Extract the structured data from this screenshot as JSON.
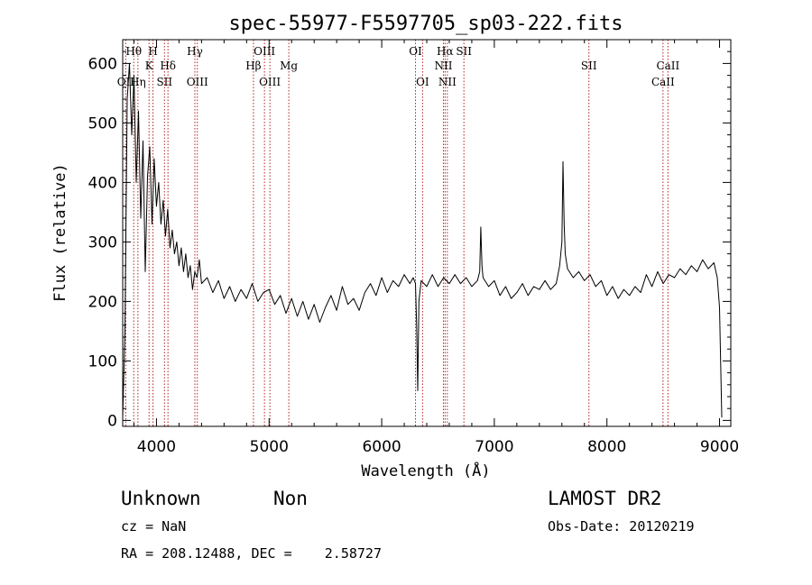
{
  "chart_data": {
    "type": "line",
    "title": "spec-55977-F5597705_sp03-222.fits",
    "xlabel": "Wavelength (Å)",
    "ylabel": "Flux (relative)",
    "xlim": [
      3700,
      9100
    ],
    "ylim": [
      -10,
      640
    ],
    "xticks": [
      4000,
      5000,
      6000,
      7000,
      8000,
      9000
    ],
    "yticks": [
      0,
      100,
      200,
      300,
      400,
      500,
      600
    ],
    "grid": false,
    "series": [
      {
        "color": "#000000",
        "points": [
          [
            3700,
            5
          ],
          [
            3720,
            150
          ],
          [
            3740,
            540
          ],
          [
            3760,
            600
          ],
          [
            3780,
            480
          ],
          [
            3800,
            580
          ],
          [
            3820,
            400
          ],
          [
            3840,
            520
          ],
          [
            3860,
            340
          ],
          [
            3880,
            470
          ],
          [
            3900,
            250
          ],
          [
            3920,
            410
          ],
          [
            3940,
            460
          ],
          [
            3960,
            330
          ],
          [
            3980,
            440
          ],
          [
            4000,
            360
          ],
          [
            4020,
            400
          ],
          [
            4040,
            330
          ],
          [
            4060,
            370
          ],
          [
            4080,
            310
          ],
          [
            4100,
            355
          ],
          [
            4120,
            290
          ],
          [
            4140,
            320
          ],
          [
            4160,
            280
          ],
          [
            4180,
            300
          ],
          [
            4200,
            260
          ],
          [
            4220,
            290
          ],
          [
            4240,
            250
          ],
          [
            4260,
            280
          ],
          [
            4280,
            240
          ],
          [
            4300,
            260
          ],
          [
            4320,
            220
          ],
          [
            4340,
            250
          ],
          [
            4360,
            240
          ],
          [
            4380,
            270
          ],
          [
            4400,
            230
          ],
          [
            4450,
            240
          ],
          [
            4500,
            215
          ],
          [
            4550,
            235
          ],
          [
            4600,
            205
          ],
          [
            4650,
            225
          ],
          [
            4700,
            200
          ],
          [
            4750,
            220
          ],
          [
            4800,
            205
          ],
          [
            4850,
            230
          ],
          [
            4900,
            200
          ],
          [
            4950,
            215
          ],
          [
            5000,
            220
          ],
          [
            5050,
            195
          ],
          [
            5100,
            210
          ],
          [
            5150,
            180
          ],
          [
            5200,
            205
          ],
          [
            5250,
            175
          ],
          [
            5300,
            200
          ],
          [
            5350,
            170
          ],
          [
            5400,
            195
          ],
          [
            5450,
            165
          ],
          [
            5500,
            190
          ],
          [
            5550,
            210
          ],
          [
            5600,
            185
          ],
          [
            5650,
            225
          ],
          [
            5700,
            195
          ],
          [
            5750,
            205
          ],
          [
            5800,
            185
          ],
          [
            5850,
            215
          ],
          [
            5900,
            230
          ],
          [
            5950,
            210
          ],
          [
            6000,
            240
          ],
          [
            6050,
            215
          ],
          [
            6100,
            235
          ],
          [
            6150,
            225
          ],
          [
            6200,
            245
          ],
          [
            6250,
            230
          ],
          [
            6280,
            240
          ],
          [
            6300,
            230
          ],
          [
            6310,
            160
          ],
          [
            6320,
            50
          ],
          [
            6330,
            200
          ],
          [
            6350,
            235
          ],
          [
            6400,
            225
          ],
          [
            6450,
            245
          ],
          [
            6500,
            225
          ],
          [
            6550,
            240
          ],
          [
            6600,
            230
          ],
          [
            6650,
            245
          ],
          [
            6700,
            230
          ],
          [
            6750,
            240
          ],
          [
            6800,
            225
          ],
          [
            6850,
            235
          ],
          [
            6870,
            250
          ],
          [
            6880,
            325
          ],
          [
            6890,
            260
          ],
          [
            6900,
            240
          ],
          [
            6950,
            225
          ],
          [
            7000,
            235
          ],
          [
            7050,
            210
          ],
          [
            7100,
            225
          ],
          [
            7150,
            205
          ],
          [
            7200,
            215
          ],
          [
            7250,
            230
          ],
          [
            7300,
            210
          ],
          [
            7350,
            225
          ],
          [
            7400,
            220
          ],
          [
            7450,
            235
          ],
          [
            7500,
            220
          ],
          [
            7550,
            230
          ],
          [
            7580,
            260
          ],
          [
            7600,
            300
          ],
          [
            7610,
            435
          ],
          [
            7620,
            330
          ],
          [
            7630,
            280
          ],
          [
            7650,
            255
          ],
          [
            7700,
            240
          ],
          [
            7750,
            250
          ],
          [
            7800,
            235
          ],
          [
            7850,
            245
          ],
          [
            7900,
            225
          ],
          [
            7950,
            235
          ],
          [
            8000,
            210
          ],
          [
            8050,
            225
          ],
          [
            8100,
            205
          ],
          [
            8150,
            220
          ],
          [
            8200,
            210
          ],
          [
            8250,
            225
          ],
          [
            8300,
            215
          ],
          [
            8350,
            245
          ],
          [
            8400,
            225
          ],
          [
            8450,
            250
          ],
          [
            8500,
            230
          ],
          [
            8550,
            245
          ],
          [
            8600,
            240
          ],
          [
            8650,
            255
          ],
          [
            8700,
            245
          ],
          [
            8750,
            260
          ],
          [
            8800,
            250
          ],
          [
            8850,
            270
          ],
          [
            8900,
            255
          ],
          [
            8950,
            265
          ],
          [
            8980,
            240
          ],
          [
            9000,
            190
          ],
          [
            9020,
            5
          ]
        ]
      }
    ],
    "lines": [
      {
        "wavelength": 3727,
        "label": "OII",
        "row": 2
      },
      {
        "wavelength": 3798,
        "label": "Hθ",
        "row": 0
      },
      {
        "wavelength": 3835,
        "label": "Hη",
        "row": 2
      },
      {
        "wavelength": 3934,
        "label": "K",
        "row": 1
      },
      {
        "wavelength": 3969,
        "label": "H",
        "row": 0
      },
      {
        "wavelength": 4071,
        "label": "SII",
        "row": 2
      },
      {
        "wavelength": 4102,
        "label": "Hδ",
        "row": 1
      },
      {
        "wavelength": 4341,
        "label": "Hγ",
        "row": 0
      },
      {
        "wavelength": 4363,
        "label": "OIII",
        "row": 2
      },
      {
        "wavelength": 4861,
        "label": "Hβ",
        "row": 1
      },
      {
        "wavelength": 4959,
        "label": "OIII",
        "row": 0
      },
      {
        "wavelength": 5007,
        "label": "OIII",
        "row": 2
      },
      {
        "wavelength": 5175,
        "label": "Mg",
        "row": 1
      },
      {
        "wavelength": 6300,
        "label": "OI",
        "row": 0
      },
      {
        "wavelength": 6363,
        "label": "OI",
        "row": 2
      },
      {
        "wavelength": 6548,
        "label": "NII",
        "row": 1
      },
      {
        "wavelength": 6563,
        "label": "Hα",
        "row": 0
      },
      {
        "wavelength": 6583,
        "label": "NII",
        "row": 2
      },
      {
        "wavelength": 6730,
        "label": "SII",
        "row": 0
      },
      {
        "wavelength": 7840,
        "label": "SII",
        "row": 1
      },
      {
        "wavelength": 8498,
        "label": "CaII",
        "row": 2
      },
      {
        "wavelength": 8542,
        "label": "CaII",
        "row": 1
      }
    ],
    "line_color": "#b22222"
  },
  "info": {
    "class": "Unknown",
    "subclass": "Non",
    "survey": "LAMOST DR2",
    "cz": "cz = NaN",
    "obs_date": "Obs-Date: 20120219",
    "coords": "RA = 208.12488, DEC =    2.58727"
  }
}
